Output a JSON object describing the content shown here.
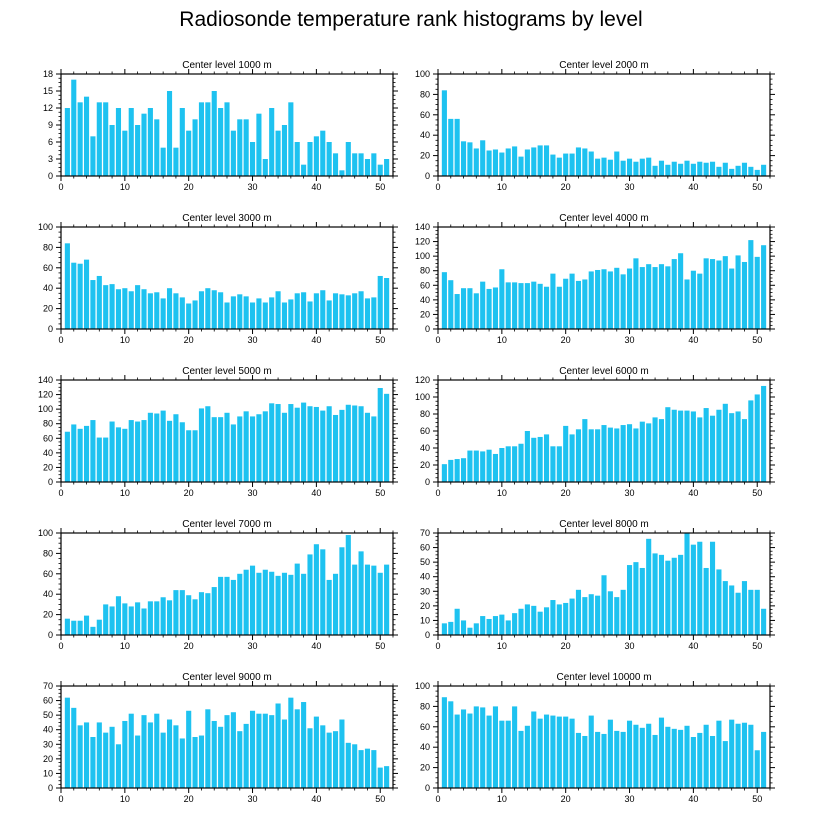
{
  "title": "Radiosonde temperature rank histograms by level",
  "colors": {
    "bar": "#1ec2f0",
    "axis": "#000000",
    "background": "#ffffff"
  },
  "chart_data": [
    {
      "type": "bar",
      "title": "Center level 1000 m",
      "xlim": [
        0,
        52
      ],
      "xticks": [
        0,
        10,
        20,
        30,
        40,
        50
      ],
      "ylim": [
        0,
        18
      ],
      "yticks": [
        0,
        3,
        6,
        9,
        12,
        15,
        18
      ],
      "categories": [
        1,
        2,
        3,
        4,
        5,
        6,
        7,
        8,
        9,
        10,
        11,
        12,
        13,
        14,
        15,
        16,
        17,
        18,
        19,
        20,
        21,
        22,
        23,
        24,
        25,
        26,
        27,
        28,
        29,
        30,
        31,
        32,
        33,
        34,
        35,
        36,
        37,
        38,
        39,
        40,
        41,
        42,
        43,
        44,
        45,
        46,
        47,
        48,
        49,
        50,
        51
      ],
      "values": [
        12,
        17,
        13,
        14,
        7,
        13,
        13,
        9,
        12,
        8,
        12,
        9,
        11,
        12,
        10,
        5,
        15,
        5,
        12,
        8,
        10,
        13,
        13,
        15,
        12,
        13,
        8,
        10,
        10,
        6,
        11,
        3,
        12,
        8,
        9,
        13,
        6,
        2,
        6,
        7,
        8,
        6,
        4,
        1,
        6,
        4,
        4,
        3,
        4,
        2,
        3
      ]
    },
    {
      "type": "bar",
      "title": "Center level 2000 m",
      "xlim": [
        0,
        52
      ],
      "xticks": [
        0,
        10,
        20,
        30,
        40,
        50
      ],
      "ylim": [
        0,
        100
      ],
      "yticks": [
        0,
        20,
        40,
        60,
        80,
        100
      ],
      "categories": [
        1,
        2,
        3,
        4,
        5,
        6,
        7,
        8,
        9,
        10,
        11,
        12,
        13,
        14,
        15,
        16,
        17,
        18,
        19,
        20,
        21,
        22,
        23,
        24,
        25,
        26,
        27,
        28,
        29,
        30,
        31,
        32,
        33,
        34,
        35,
        36,
        37,
        38,
        39,
        40,
        41,
        42,
        43,
        44,
        45,
        46,
        47,
        48,
        49,
        50,
        51
      ],
      "values": [
        84,
        56,
        56,
        34,
        33,
        27,
        35,
        25,
        26,
        23,
        27,
        29,
        19,
        26,
        28,
        30,
        30,
        21,
        18,
        22,
        22,
        28,
        27,
        24,
        17,
        18,
        16,
        24,
        15,
        17,
        14,
        17,
        18,
        10,
        15,
        11,
        14,
        12,
        15,
        12,
        14,
        13,
        14,
        9,
        13,
        7,
        10,
        13,
        9,
        6,
        11
      ]
    },
    {
      "type": "bar",
      "title": "Center level 3000 m",
      "xlim": [
        0,
        52
      ],
      "xticks": [
        0,
        10,
        20,
        30,
        40,
        50
      ],
      "ylim": [
        0,
        100
      ],
      "yticks": [
        0,
        20,
        40,
        60,
        80,
        100
      ],
      "categories": [
        1,
        2,
        3,
        4,
        5,
        6,
        7,
        8,
        9,
        10,
        11,
        12,
        13,
        14,
        15,
        16,
        17,
        18,
        19,
        20,
        21,
        22,
        23,
        24,
        25,
        26,
        27,
        28,
        29,
        30,
        31,
        32,
        33,
        34,
        35,
        36,
        37,
        38,
        39,
        40,
        41,
        42,
        43,
        44,
        45,
        46,
        47,
        48,
        49,
        50,
        51
      ],
      "values": [
        84,
        65,
        64,
        68,
        48,
        52,
        43,
        44,
        39,
        40,
        37,
        43,
        39,
        35,
        36,
        30,
        40,
        35,
        31,
        25,
        28,
        37,
        40,
        38,
        36,
        26,
        32,
        34,
        32,
        26,
        30,
        26,
        31,
        37,
        26,
        29,
        35,
        36,
        27,
        35,
        38,
        28,
        35,
        34,
        33,
        35,
        37,
        30,
        31,
        52,
        50
      ]
    },
    {
      "type": "bar",
      "title": "Center level 4000 m",
      "xlim": [
        0,
        52
      ],
      "xticks": [
        0,
        10,
        20,
        30,
        40,
        50
      ],
      "ylim": [
        0,
        140
      ],
      "yticks": [
        0,
        20,
        40,
        60,
        80,
        100,
        120,
        140
      ],
      "categories": [
        1,
        2,
        3,
        4,
        5,
        6,
        7,
        8,
        9,
        10,
        11,
        12,
        13,
        14,
        15,
        16,
        17,
        18,
        19,
        20,
        21,
        22,
        23,
        24,
        25,
        26,
        27,
        28,
        29,
        30,
        31,
        32,
        33,
        34,
        35,
        36,
        37,
        38,
        39,
        40,
        41,
        42,
        43,
        44,
        45,
        46,
        47,
        48,
        49,
        50,
        51
      ],
      "values": [
        78,
        67,
        48,
        56,
        56,
        49,
        65,
        55,
        57,
        82,
        64,
        64,
        63,
        63,
        65,
        62,
        58,
        76,
        58,
        69,
        76,
        66,
        68,
        79,
        81,
        82,
        79,
        84,
        75,
        83,
        97,
        85,
        89,
        85,
        89,
        86,
        96,
        104,
        68,
        80,
        76,
        97,
        96,
        94,
        100,
        83,
        101,
        92,
        122,
        99,
        115
      ]
    },
    {
      "type": "bar",
      "title": "Center level 5000 m",
      "xlim": [
        0,
        52
      ],
      "xticks": [
        0,
        10,
        20,
        30,
        40,
        50
      ],
      "ylim": [
        0,
        140
      ],
      "yticks": [
        0,
        20,
        40,
        60,
        80,
        100,
        120,
        140
      ],
      "categories": [
        1,
        2,
        3,
        4,
        5,
        6,
        7,
        8,
        9,
        10,
        11,
        12,
        13,
        14,
        15,
        16,
        17,
        18,
        19,
        20,
        21,
        22,
        23,
        24,
        25,
        26,
        27,
        28,
        29,
        30,
        31,
        32,
        33,
        34,
        35,
        36,
        37,
        38,
        39,
        40,
        41,
        42,
        43,
        44,
        45,
        46,
        47,
        48,
        49,
        50,
        51
      ],
      "values": [
        69,
        79,
        73,
        77,
        85,
        61,
        61,
        83,
        75,
        73,
        85,
        83,
        85,
        95,
        94,
        98,
        84,
        93,
        82,
        71,
        71,
        101,
        104,
        89,
        89,
        95,
        79,
        90,
        97,
        90,
        93,
        97,
        108,
        107,
        95,
        107,
        102,
        109,
        104,
        103,
        98,
        104,
        92,
        99,
        106,
        105,
        104,
        95,
        90,
        129,
        121
      ]
    },
    {
      "type": "bar",
      "title": "Center level 6000 m",
      "xlim": [
        0,
        52
      ],
      "xticks": [
        0,
        10,
        20,
        30,
        40,
        50
      ],
      "ylim": [
        0,
        120
      ],
      "yticks": [
        0,
        20,
        40,
        60,
        80,
        100,
        120
      ],
      "categories": [
        1,
        2,
        3,
        4,
        5,
        6,
        7,
        8,
        9,
        10,
        11,
        12,
        13,
        14,
        15,
        16,
        17,
        18,
        19,
        20,
        21,
        22,
        23,
        24,
        25,
        26,
        27,
        28,
        29,
        30,
        31,
        32,
        33,
        34,
        35,
        36,
        37,
        38,
        39,
        40,
        41,
        42,
        43,
        44,
        45,
        46,
        47,
        48,
        49,
        50,
        51
      ],
      "values": [
        21,
        26,
        27,
        28,
        37,
        37,
        36,
        38,
        33,
        40,
        42,
        42,
        45,
        60,
        52,
        53,
        56,
        42,
        42,
        66,
        56,
        62,
        74,
        62,
        62,
        67,
        64,
        63,
        67,
        68,
        63,
        71,
        69,
        76,
        74,
        88,
        85,
        84,
        84,
        83,
        76,
        87,
        78,
        85,
        92,
        81,
        83,
        74,
        96,
        103,
        113
      ]
    },
    {
      "type": "bar",
      "title": "Center level 7000 m",
      "xlim": [
        0,
        52
      ],
      "xticks": [
        0,
        10,
        20,
        30,
        40,
        50
      ],
      "ylim": [
        0,
        100
      ],
      "yticks": [
        0,
        20,
        40,
        60,
        80,
        100
      ],
      "categories": [
        1,
        2,
        3,
        4,
        5,
        6,
        7,
        8,
        9,
        10,
        11,
        12,
        13,
        14,
        15,
        16,
        17,
        18,
        19,
        20,
        21,
        22,
        23,
        24,
        25,
        26,
        27,
        28,
        29,
        30,
        31,
        32,
        33,
        34,
        35,
        36,
        37,
        38,
        39,
        40,
        41,
        42,
        43,
        44,
        45,
        46,
        47,
        48,
        49,
        50,
        51
      ],
      "values": [
        16,
        14,
        14,
        19,
        8,
        15,
        30,
        28,
        38,
        31,
        28,
        32,
        26,
        33,
        33,
        37,
        34,
        44,
        44,
        39,
        35,
        42,
        41,
        47,
        57,
        57,
        54,
        60,
        64,
        68,
        61,
        64,
        62,
        58,
        61,
        59,
        70,
        60,
        79,
        89,
        84,
        54,
        60,
        86,
        98,
        69,
        82,
        69,
        68,
        61,
        69
      ]
    },
    {
      "type": "bar",
      "title": "Center level 8000 m",
      "xlim": [
        0,
        52
      ],
      "xticks": [
        0,
        10,
        20,
        30,
        40,
        50
      ],
      "ylim": [
        0,
        70
      ],
      "yticks": [
        0,
        10,
        20,
        30,
        40,
        50,
        60,
        70
      ],
      "categories": [
        1,
        2,
        3,
        4,
        5,
        6,
        7,
        8,
        9,
        10,
        11,
        12,
        13,
        14,
        15,
        16,
        17,
        18,
        19,
        20,
        21,
        22,
        23,
        24,
        25,
        26,
        27,
        28,
        29,
        30,
        31,
        32,
        33,
        34,
        35,
        36,
        37,
        38,
        39,
        40,
        41,
        42,
        43,
        44,
        45,
        46,
        47,
        48,
        49,
        50,
        51
      ],
      "values": [
        8,
        9,
        18,
        10,
        5,
        8,
        13,
        11,
        13,
        14,
        10,
        15,
        18,
        21,
        20,
        16,
        19,
        24,
        21,
        22,
        25,
        31,
        26,
        28,
        27,
        41,
        30,
        26,
        31,
        48,
        50,
        46,
        66,
        56,
        55,
        51,
        53,
        55,
        70,
        62,
        64,
        46,
        64,
        45,
        37,
        34,
        29,
        37,
        31,
        31,
        18
      ]
    },
    {
      "type": "bar",
      "title": "Center level 9000 m",
      "xlim": [
        0,
        52
      ],
      "xticks": [
        0,
        10,
        20,
        30,
        40,
        50
      ],
      "ylim": [
        0,
        70
      ],
      "yticks": [
        0,
        10,
        20,
        30,
        40,
        50,
        60,
        70
      ],
      "categories": [
        1,
        2,
        3,
        4,
        5,
        6,
        7,
        8,
        9,
        10,
        11,
        12,
        13,
        14,
        15,
        16,
        17,
        18,
        19,
        20,
        21,
        22,
        23,
        24,
        25,
        26,
        27,
        28,
        29,
        30,
        31,
        32,
        33,
        34,
        35,
        36,
        37,
        38,
        39,
        40,
        41,
        42,
        43,
        44,
        45,
        46,
        47,
        48,
        49,
        50,
        51
      ],
      "values": [
        62,
        55,
        43,
        45,
        35,
        45,
        38,
        42,
        30,
        46,
        51,
        36,
        50,
        45,
        51,
        38,
        47,
        43,
        34,
        53,
        35,
        36,
        54,
        46,
        42,
        50,
        52,
        39,
        44,
        53,
        51,
        51,
        50,
        58,
        47,
        62,
        54,
        59,
        41,
        49,
        43,
        38,
        39,
        47,
        31,
        30,
        26,
        27,
        26,
        14,
        15
      ]
    },
    {
      "type": "bar",
      "title": "Center level 10000 m",
      "xlim": [
        0,
        52
      ],
      "xticks": [
        0,
        10,
        20,
        30,
        40,
        50
      ],
      "ylim": [
        0,
        100
      ],
      "yticks": [
        0,
        20,
        40,
        60,
        80,
        100
      ],
      "categories": [
        1,
        2,
        3,
        4,
        5,
        6,
        7,
        8,
        9,
        10,
        11,
        12,
        13,
        14,
        15,
        16,
        17,
        18,
        19,
        20,
        21,
        22,
        23,
        24,
        25,
        26,
        27,
        28,
        29,
        30,
        31,
        32,
        33,
        34,
        35,
        36,
        37,
        38,
        39,
        40,
        41,
        42,
        43,
        44,
        45,
        46,
        47,
        48,
        49,
        50,
        51
      ],
      "values": [
        89,
        85,
        72,
        77,
        73,
        80,
        79,
        71,
        80,
        66,
        66,
        80,
        56,
        61,
        75,
        68,
        72,
        71,
        70,
        70,
        68,
        54,
        51,
        71,
        55,
        53,
        67,
        56,
        55,
        66,
        62,
        59,
        63,
        52,
        69,
        60,
        58,
        57,
        61,
        50,
        54,
        62,
        51,
        66,
        46,
        67,
        63,
        64,
        62,
        37,
        55
      ]
    }
  ]
}
